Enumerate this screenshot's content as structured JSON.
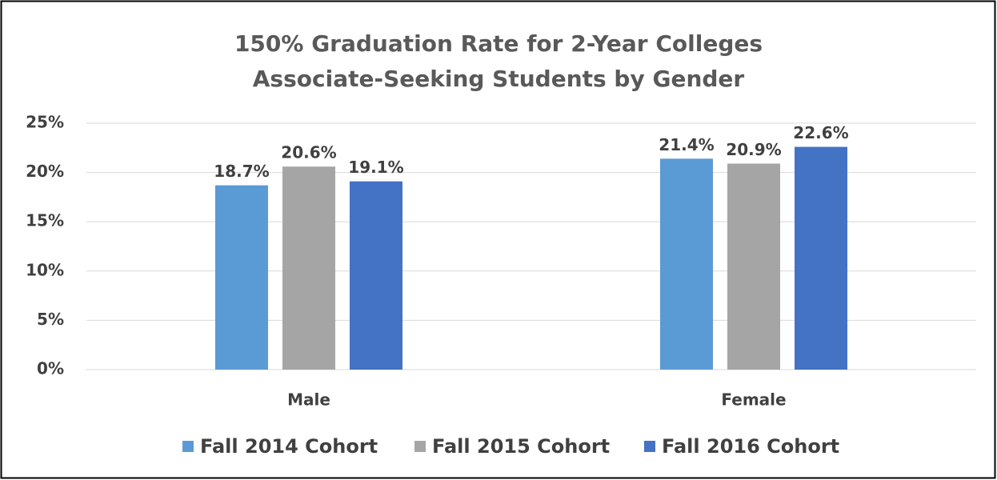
{
  "chart_data": {
    "type": "bar",
    "title": [
      "150% Graduation Rate for 2-Year Colleges",
      "Associate-Seeking Students by Gender"
    ],
    "categories": [
      "Male",
      "Female"
    ],
    "series": [
      {
        "name": "Fall 2014 Cohort",
        "color": "#5b9bd5",
        "values": [
          18.7,
          21.4
        ],
        "value_labels": [
          "18.7%",
          "21.4%"
        ]
      },
      {
        "name": "Fall 2015 Cohort",
        "color": "#a5a5a5",
        "values": [
          20.6,
          20.9
        ],
        "value_labels": [
          "20.6%",
          "20.9%"
        ]
      },
      {
        "name": "Fall 2016 Cohort",
        "color": "#4472c4",
        "values": [
          19.1,
          22.6
        ],
        "value_labels": [
          "19.1%",
          "22.6%"
        ]
      }
    ],
    "ylim": [
      0,
      25
    ],
    "yticks": [
      {
        "value": 0,
        "label": "0%"
      },
      {
        "value": 5,
        "label": "5%"
      },
      {
        "value": 10,
        "label": "10%"
      },
      {
        "value": 15,
        "label": "15%"
      },
      {
        "value": 20,
        "label": "20%"
      },
      {
        "value": 25,
        "label": "25%"
      }
    ],
    "grid": true,
    "legend": "bottom"
  }
}
